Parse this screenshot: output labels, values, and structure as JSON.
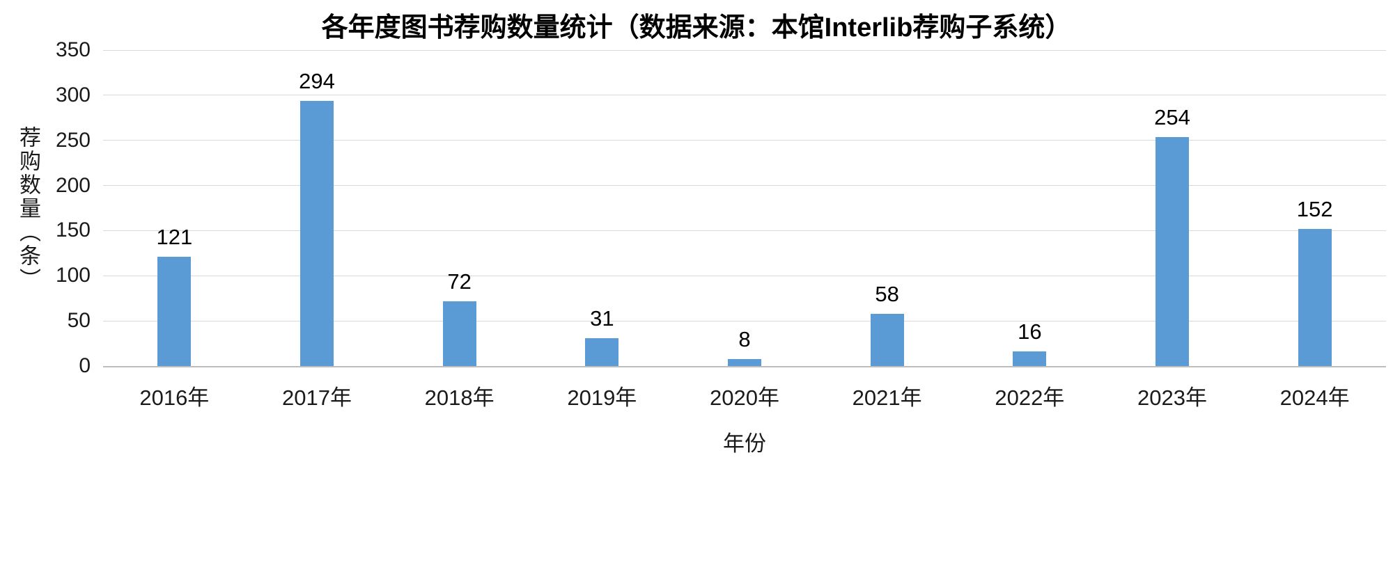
{
  "chart_data": {
    "type": "bar",
    "title": "各年度图书荐购数量统计（数据来源：本馆Interlib荐购子系统）",
    "categories": [
      "2016年",
      "2017年",
      "2018年",
      "2019年",
      "2020年",
      "2021年",
      "2022年",
      "2023年",
      "2024年"
    ],
    "values": [
      121,
      294,
      72,
      31,
      8,
      58,
      16,
      254,
      152
    ],
    "xlabel": "年份",
    "ylabel": "荐购数量（条）",
    "ylim": [
      0,
      350
    ],
    "ytick_interval": 50,
    "yticks": [
      0,
      50,
      100,
      150,
      200,
      250,
      300,
      350
    ],
    "grid": true,
    "legend": false,
    "data_labels": true,
    "bar_color": "#5b9bd5",
    "gridline_color": "#d9d9d9",
    "axis_line_color": "#bdbdbd",
    "text_color": "#1a1a1a",
    "title_color": "#000000",
    "background_color": "#ffffff"
  }
}
